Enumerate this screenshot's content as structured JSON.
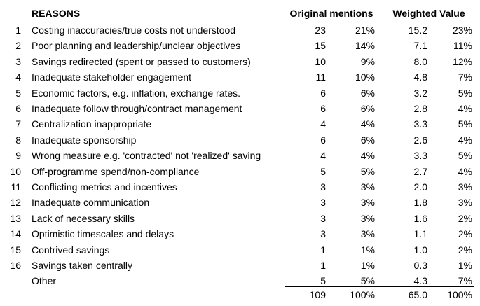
{
  "table": {
    "headers": {
      "reasons": "REASONS",
      "original_mentions": "Original mentions",
      "weighted_value": "Weighted Value"
    },
    "rows": [
      {
        "num": "1",
        "reason": "Costing inaccuracies/true costs not understood",
        "mentions": "23",
        "mentions_pct": "21%",
        "weighted": "15.2",
        "weighted_pct": "23%"
      },
      {
        "num": "2",
        "reason": "Poor planning and leadership/unclear objectives",
        "mentions": "15",
        "mentions_pct": "14%",
        "weighted": "7.1",
        "weighted_pct": "11%"
      },
      {
        "num": "3",
        "reason": "Savings redirected (spent or passed to customers)",
        "mentions": "10",
        "mentions_pct": "9%",
        "weighted": "8.0",
        "weighted_pct": "12%"
      },
      {
        "num": "4",
        "reason": "Inadequate stakeholder engagement",
        "mentions": "11",
        "mentions_pct": "10%",
        "weighted": "4.8",
        "weighted_pct": "7%"
      },
      {
        "num": "5",
        "reason": "Economic factors, e.g. inflation, exchange rates.",
        "mentions": "6",
        "mentions_pct": "6%",
        "weighted": "3.2",
        "weighted_pct": "5%"
      },
      {
        "num": "6",
        "reason": "Inadequate follow through/contract management",
        "mentions": "6",
        "mentions_pct": "6%",
        "weighted": "2.8",
        "weighted_pct": "4%"
      },
      {
        "num": "7",
        "reason": "Centralization inappropriate",
        "mentions": "4",
        "mentions_pct": "4%",
        "weighted": "3.3",
        "weighted_pct": "5%"
      },
      {
        "num": "8",
        "reason": "Inadequate sponsorship",
        "mentions": "6",
        "mentions_pct": "6%",
        "weighted": "2.6",
        "weighted_pct": "4%"
      },
      {
        "num": "9",
        "reason": "Wrong measure e.g. 'contracted' not 'realized' saving",
        "mentions": "4",
        "mentions_pct": "4%",
        "weighted": "3.3",
        "weighted_pct": "5%"
      },
      {
        "num": "10",
        "reason": "Off-programme spend/non-compliance",
        "mentions": "5",
        "mentions_pct": "5%",
        "weighted": "2.7",
        "weighted_pct": "4%"
      },
      {
        "num": "11",
        "reason": "Conflicting metrics and incentives",
        "mentions": "3",
        "mentions_pct": "3%",
        "weighted": "2.0",
        "weighted_pct": "3%"
      },
      {
        "num": "12",
        "reason": "Inadequate communication",
        "mentions": "3",
        "mentions_pct": "3%",
        "weighted": "1.8",
        "weighted_pct": "3%"
      },
      {
        "num": "13",
        "reason": "Lack of necessary skills",
        "mentions": "3",
        "mentions_pct": "3%",
        "weighted": "1.6",
        "weighted_pct": "2%"
      },
      {
        "num": "14",
        "reason": "Optimistic timescales and delays",
        "mentions": "3",
        "mentions_pct": "3%",
        "weighted": "1.1",
        "weighted_pct": "2%"
      },
      {
        "num": "15",
        "reason": "Contrived savings",
        "mentions": "1",
        "mentions_pct": "1%",
        "weighted": "1.0",
        "weighted_pct": "2%"
      },
      {
        "num": "16",
        "reason": "Savings taken centrally",
        "mentions": "1",
        "mentions_pct": "1%",
        "weighted": "0.3",
        "weighted_pct": "1%"
      },
      {
        "num": "",
        "reason": "Other",
        "mentions": "5",
        "mentions_pct": "5%",
        "weighted": "4.3",
        "weighted_pct": "7%"
      }
    ],
    "totals": {
      "mentions": "109",
      "mentions_pct": "100%",
      "weighted": "65.0",
      "weighted_pct": "100%"
    }
  }
}
